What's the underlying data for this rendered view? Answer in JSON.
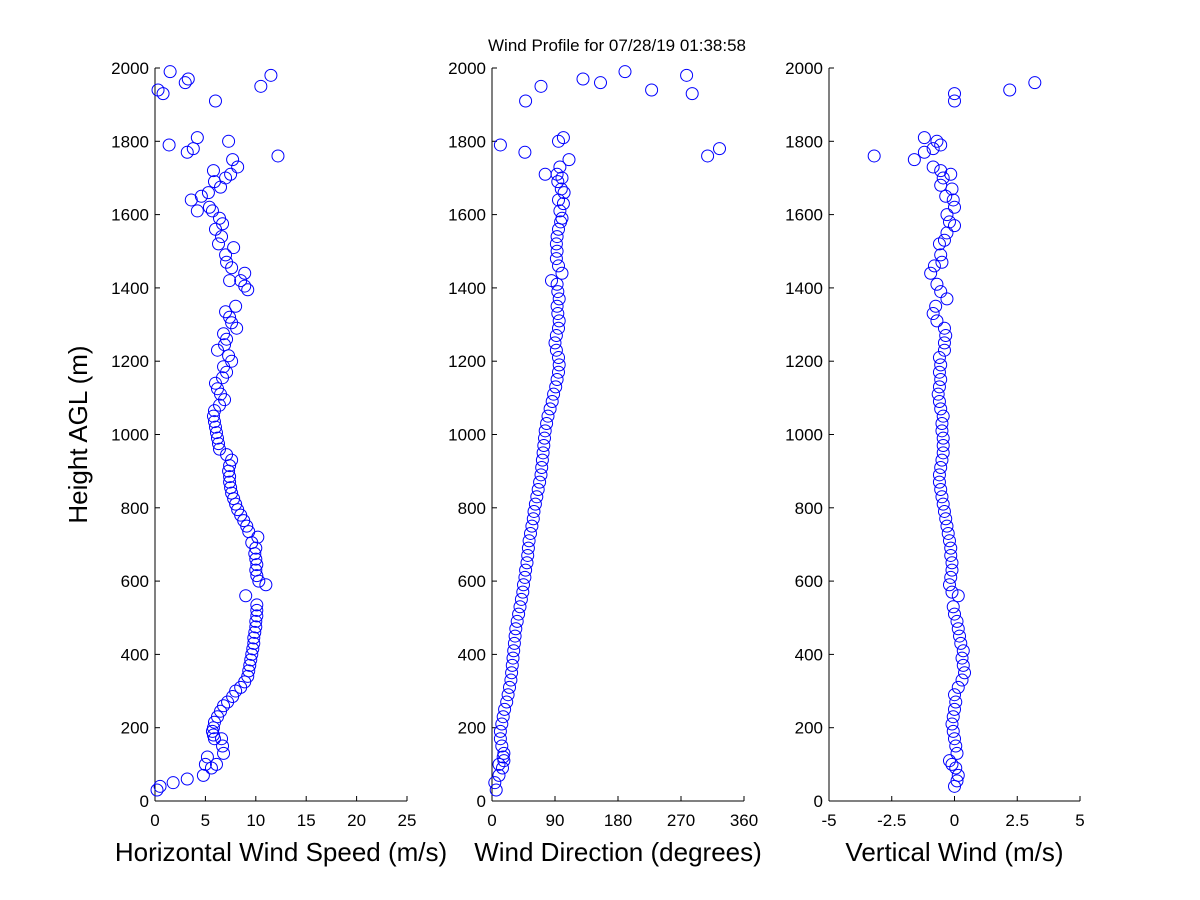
{
  "title": "Wind Profile for  07/28/19 01:38:58",
  "colors": {
    "marker": "#0000ff",
    "axis": "#000000",
    "background": "#ffffff"
  },
  "chart_data": [
    {
      "type": "scatter",
      "xlabel": "Horizontal Wind Speed (m/s)",
      "ylabel": "Height AGL (m)",
      "xlim": [
        0,
        25
      ],
      "ylim": [
        0,
        2000
      ],
      "xticks": [
        "0",
        "5",
        "10",
        "15",
        "20",
        "25"
      ],
      "yticks": [
        "0",
        "200",
        "400",
        "600",
        "800",
        "1000",
        "1200",
        "1400",
        "1600",
        "1800",
        "2000"
      ],
      "points": [
        [
          0.2,
          30
        ],
        [
          0.5,
          40
        ],
        [
          1.8,
          50
        ],
        [
          3.2,
          60
        ],
        [
          4.8,
          70
        ],
        [
          5.0,
          100
        ],
        [
          5.6,
          90
        ],
        [
          6.1,
          100
        ],
        [
          5.2,
          120
        ],
        [
          6.8,
          130
        ],
        [
          6.7,
          150
        ],
        [
          6.6,
          170
        ],
        [
          5.9,
          170
        ],
        [
          5.8,
          180
        ],
        [
          5.7,
          190
        ],
        [
          5.8,
          200
        ],
        [
          5.9,
          215
        ],
        [
          6.2,
          230
        ],
        [
          6.5,
          245
        ],
        [
          6.8,
          260
        ],
        [
          7.2,
          270
        ],
        [
          7.7,
          285
        ],
        [
          8.0,
          300
        ],
        [
          8.5,
          310
        ],
        [
          8.9,
          325
        ],
        [
          9.2,
          340
        ],
        [
          9.3,
          355
        ],
        [
          9.4,
          370
        ],
        [
          9.5,
          385
        ],
        [
          9.6,
          400
        ],
        [
          9.7,
          415
        ],
        [
          9.8,
          430
        ],
        [
          9.8,
          445
        ],
        [
          9.9,
          460
        ],
        [
          10.0,
          475
        ],
        [
          10.0,
          490
        ],
        [
          10.1,
          505
        ],
        [
          10.1,
          520
        ],
        [
          10.1,
          535
        ],
        [
          9.0,
          560
        ],
        [
          11.0,
          590
        ],
        [
          10.3,
          600
        ],
        [
          10.1,
          615
        ],
        [
          10.0,
          630
        ],
        [
          10.1,
          645
        ],
        [
          10.0,
          660
        ],
        [
          9.9,
          675
        ],
        [
          10.0,
          690
        ],
        [
          9.6,
          705
        ],
        [
          10.2,
          720
        ],
        [
          9.3,
          735
        ],
        [
          9.1,
          750
        ],
        [
          8.8,
          765
        ],
        [
          8.5,
          780
        ],
        [
          8.2,
          795
        ],
        [
          8.0,
          810
        ],
        [
          7.8,
          825
        ],
        [
          7.6,
          840
        ],
        [
          7.5,
          855
        ],
        [
          7.4,
          870
        ],
        [
          7.4,
          885
        ],
        [
          7.3,
          900
        ],
        [
          7.4,
          915
        ],
        [
          7.6,
          930
        ],
        [
          7.1,
          945
        ],
        [
          6.4,
          960
        ],
        [
          6.3,
          975
        ],
        [
          6.2,
          990
        ],
        [
          6.1,
          1005
        ],
        [
          6.0,
          1020
        ],
        [
          5.9,
          1035
        ],
        [
          5.8,
          1050
        ],
        [
          5.9,
          1065
        ],
        [
          6.4,
          1080
        ],
        [
          6.9,
          1095
        ],
        [
          6.5,
          1110
        ],
        [
          6.2,
          1125
        ],
        [
          6.0,
          1140
        ],
        [
          6.7,
          1155
        ],
        [
          7.1,
          1170
        ],
        [
          6.8,
          1185
        ],
        [
          7.6,
          1200
        ],
        [
          7.3,
          1215
        ],
        [
          6.2,
          1230
        ],
        [
          6.9,
          1245
        ],
        [
          7.1,
          1260
        ],
        [
          6.8,
          1275
        ],
        [
          8.1,
          1290
        ],
        [
          7.6,
          1305
        ],
        [
          7.4,
          1320
        ],
        [
          7.0,
          1335
        ],
        [
          8.0,
          1350
        ],
        [
          9.2,
          1395
        ],
        [
          8.9,
          1405
        ],
        [
          8.5,
          1420
        ],
        [
          7.4,
          1420
        ],
        [
          8.9,
          1440
        ],
        [
          7.6,
          1455
        ],
        [
          7.1,
          1470
        ],
        [
          7.0,
          1490
        ],
        [
          7.8,
          1510
        ],
        [
          6.3,
          1520
        ],
        [
          6.6,
          1540
        ],
        [
          6.0,
          1560
        ],
        [
          6.7,
          1575
        ],
        [
          6.4,
          1590
        ],
        [
          5.7,
          1610
        ],
        [
          4.2,
          1610
        ],
        [
          5.4,
          1620
        ],
        [
          3.6,
          1640
        ],
        [
          4.6,
          1650
        ],
        [
          5.3,
          1660
        ],
        [
          6.5,
          1675
        ],
        [
          5.9,
          1690
        ],
        [
          7.0,
          1700
        ],
        [
          7.5,
          1710
        ],
        [
          5.8,
          1720
        ],
        [
          8.2,
          1730
        ],
        [
          7.7,
          1750
        ],
        [
          12.2,
          1760
        ],
        [
          3.2,
          1770
        ],
        [
          3.8,
          1780
        ],
        [
          1.4,
          1790
        ],
        [
          7.3,
          1800
        ],
        [
          4.2,
          1810
        ],
        [
          6.0,
          1910
        ],
        [
          0.8,
          1930
        ],
        [
          0.3,
          1940
        ],
        [
          10.5,
          1950
        ],
        [
          3.0,
          1960
        ],
        [
          3.3,
          1970
        ],
        [
          11.5,
          1980
        ],
        [
          1.5,
          1990
        ]
      ]
    },
    {
      "type": "scatter",
      "xlabel": "Wind Direction (degrees)",
      "ylabel": "",
      "xlim": [
        0,
        360
      ],
      "ylim": [
        0,
        2000
      ],
      "xticks": [
        "0",
        "90",
        "180",
        "270",
        "360"
      ],
      "yticks": [
        "0",
        "200",
        "400",
        "600",
        "800",
        "1000",
        "1200",
        "1400",
        "1600",
        "1800",
        "2000"
      ],
      "points": [
        [
          6,
          30
        ],
        [
          4,
          50
        ],
        [
          10,
          70
        ],
        [
          15,
          90
        ],
        [
          10,
          100
        ],
        [
          17,
          110
        ],
        [
          16,
          120
        ],
        [
          17,
          130
        ],
        [
          14,
          150
        ],
        [
          12,
          170
        ],
        [
          12,
          190
        ],
        [
          14,
          210
        ],
        [
          16,
          230
        ],
        [
          18,
          250
        ],
        [
          21,
          270
        ],
        [
          23,
          290
        ],
        [
          25,
          310
        ],
        [
          27,
          330
        ],
        [
          28,
          350
        ],
        [
          29,
          370
        ],
        [
          30,
          390
        ],
        [
          31,
          410
        ],
        [
          32,
          430
        ],
        [
          33,
          450
        ],
        [
          34,
          470
        ],
        [
          36,
          490
        ],
        [
          38,
          510
        ],
        [
          40,
          530
        ],
        [
          42,
          550
        ],
        [
          44,
          570
        ],
        [
          45,
          590
        ],
        [
          47,
          610
        ],
        [
          48,
          630
        ],
        [
          50,
          650
        ],
        [
          51,
          670
        ],
        [
          52,
          690
        ],
        [
          53,
          710
        ],
        [
          55,
          730
        ],
        [
          57,
          750
        ],
        [
          59,
          770
        ],
        [
          60,
          790
        ],
        [
          62,
          810
        ],
        [
          64,
          830
        ],
        [
          66,
          850
        ],
        [
          68,
          870
        ],
        [
          70,
          890
        ],
        [
          71,
          910
        ],
        [
          72,
          930
        ],
        [
          73,
          950
        ],
        [
          74,
          970
        ],
        [
          75,
          990
        ],
        [
          76,
          1010
        ],
        [
          78,
          1030
        ],
        [
          80,
          1050
        ],
        [
          83,
          1070
        ],
        [
          86,
          1090
        ],
        [
          88,
          1110
        ],
        [
          91,
          1130
        ],
        [
          93,
          1150
        ],
        [
          95,
          1170
        ],
        [
          96,
          1190
        ],
        [
          95,
          1210
        ],
        [
          92,
          1230
        ],
        [
          90,
          1250
        ],
        [
          92,
          1270
        ],
        [
          95,
          1290
        ],
        [
          96,
          1310
        ],
        [
          94,
          1330
        ],
        [
          93,
          1350
        ],
        [
          96,
          1370
        ],
        [
          94,
          1390
        ],
        [
          93,
          1410
        ],
        [
          85,
          1420
        ],
        [
          100,
          1440
        ],
        [
          95,
          1460
        ],
        [
          92,
          1480
        ],
        [
          93,
          1500
        ],
        [
          92,
          1520
        ],
        [
          93,
          1540
        ],
        [
          95,
          1560
        ],
        [
          98,
          1580
        ],
        [
          100,
          1590
        ],
        [
          97,
          1610
        ],
        [
          102,
          1630
        ],
        [
          95,
          1640
        ],
        [
          103,
          1660
        ],
        [
          99,
          1670
        ],
        [
          94,
          1690
        ],
        [
          100,
          1700
        ],
        [
          93,
          1710
        ],
        [
          76,
          1710
        ],
        [
          97,
          1730
        ],
        [
          110,
          1750
        ],
        [
          47,
          1770
        ],
        [
          308,
          1760
        ],
        [
          325,
          1780
        ],
        [
          12,
          1790
        ],
        [
          95,
          1800
        ],
        [
          102,
          1810
        ],
        [
          48,
          1910
        ],
        [
          286,
          1930
        ],
        [
          228,
          1940
        ],
        [
          70,
          1950
        ],
        [
          155,
          1960
        ],
        [
          130,
          1970
        ],
        [
          278,
          1980
        ],
        [
          190,
          1990
        ]
      ]
    },
    {
      "type": "scatter",
      "xlabel": "Vertical Wind (m/s)",
      "ylabel": "",
      "xlim": [
        -5,
        5
      ],
      "ylim": [
        0,
        2000
      ],
      "xticks": [
        "-5",
        "-2.5",
        "0",
        "2.5",
        "5"
      ],
      "yticks": [
        "0",
        "200",
        "400",
        "600",
        "800",
        "1000",
        "1200",
        "1400",
        "1600",
        "1800",
        "2000"
      ],
      "points": [
        [
          0.0,
          40
        ],
        [
          0.1,
          55
        ],
        [
          0.15,
          70
        ],
        [
          0.05,
          90
        ],
        [
          -0.1,
          100
        ],
        [
          -0.2,
          110
        ],
        [
          0.1,
          130
        ],
        [
          0.05,
          150
        ],
        [
          0.0,
          170
        ],
        [
          -0.05,
          190
        ],
        [
          -0.1,
          210
        ],
        [
          -0.05,
          230
        ],
        [
          0.0,
          250
        ],
        [
          0.05,
          270
        ],
        [
          0.0,
          290
        ],
        [
          0.15,
          310
        ],
        [
          0.3,
          330
        ],
        [
          0.4,
          350
        ],
        [
          0.35,
          370
        ],
        [
          0.3,
          390
        ],
        [
          0.35,
          410
        ],
        [
          0.25,
          430
        ],
        [
          0.2,
          450
        ],
        [
          0.15,
          470
        ],
        [
          0.1,
          490
        ],
        [
          0.0,
          510
        ],
        [
          -0.05,
          530
        ],
        [
          0.15,
          560
        ],
        [
          -0.1,
          570
        ],
        [
          -0.2,
          590
        ],
        [
          -0.15,
          610
        ],
        [
          -0.1,
          630
        ],
        [
          -0.1,
          650
        ],
        [
          -0.15,
          670
        ],
        [
          -0.15,
          690
        ],
        [
          -0.2,
          710
        ],
        [
          -0.25,
          730
        ],
        [
          -0.3,
          750
        ],
        [
          -0.35,
          770
        ],
        [
          -0.4,
          790
        ],
        [
          -0.45,
          810
        ],
        [
          -0.5,
          830
        ],
        [
          -0.55,
          850
        ],
        [
          -0.6,
          870
        ],
        [
          -0.6,
          890
        ],
        [
          -0.55,
          910
        ],
        [
          -0.5,
          930
        ],
        [
          -0.45,
          950
        ],
        [
          -0.45,
          970
        ],
        [
          -0.45,
          990
        ],
        [
          -0.5,
          1010
        ],
        [
          -0.5,
          1030
        ],
        [
          -0.45,
          1050
        ],
        [
          -0.55,
          1070
        ],
        [
          -0.6,
          1090
        ],
        [
          -0.65,
          1110
        ],
        [
          -0.6,
          1130
        ],
        [
          -0.55,
          1150
        ],
        [
          -0.6,
          1170
        ],
        [
          -0.55,
          1190
        ],
        [
          -0.6,
          1210
        ],
        [
          -0.4,
          1230
        ],
        [
          -0.4,
          1250
        ],
        [
          -0.35,
          1270
        ],
        [
          -0.4,
          1290
        ],
        [
          -0.7,
          1310
        ],
        [
          -0.85,
          1330
        ],
        [
          -0.75,
          1350
        ],
        [
          -0.3,
          1370
        ],
        [
          -0.55,
          1390
        ],
        [
          -0.7,
          1410
        ],
        [
          -0.95,
          1440
        ],
        [
          -0.8,
          1460
        ],
        [
          -0.5,
          1470
        ],
        [
          -0.55,
          1490
        ],
        [
          -0.6,
          1520
        ],
        [
          -0.4,
          1530
        ],
        [
          -0.3,
          1550
        ],
        [
          0.0,
          1570
        ],
        [
          -0.2,
          1580
        ],
        [
          -0.3,
          1600
        ],
        [
          0.0,
          1620
        ],
        [
          -0.05,
          1640
        ],
        [
          -0.35,
          1650
        ],
        [
          -0.1,
          1670
        ],
        [
          -0.55,
          1680
        ],
        [
          -0.45,
          1700
        ],
        [
          -0.15,
          1710
        ],
        [
          -0.55,
          1720
        ],
        [
          -0.85,
          1730
        ],
        [
          -3.2,
          1760
        ],
        [
          -1.6,
          1750
        ],
        [
          -1.2,
          1770
        ],
        [
          -0.85,
          1780
        ],
        [
          -0.55,
          1790
        ],
        [
          -0.7,
          1800
        ],
        [
          -1.2,
          1810
        ],
        [
          0.0,
          1910
        ],
        [
          0.0,
          1930
        ],
        [
          2.2,
          1940
        ],
        [
          3.2,
          1960
        ]
      ]
    }
  ]
}
